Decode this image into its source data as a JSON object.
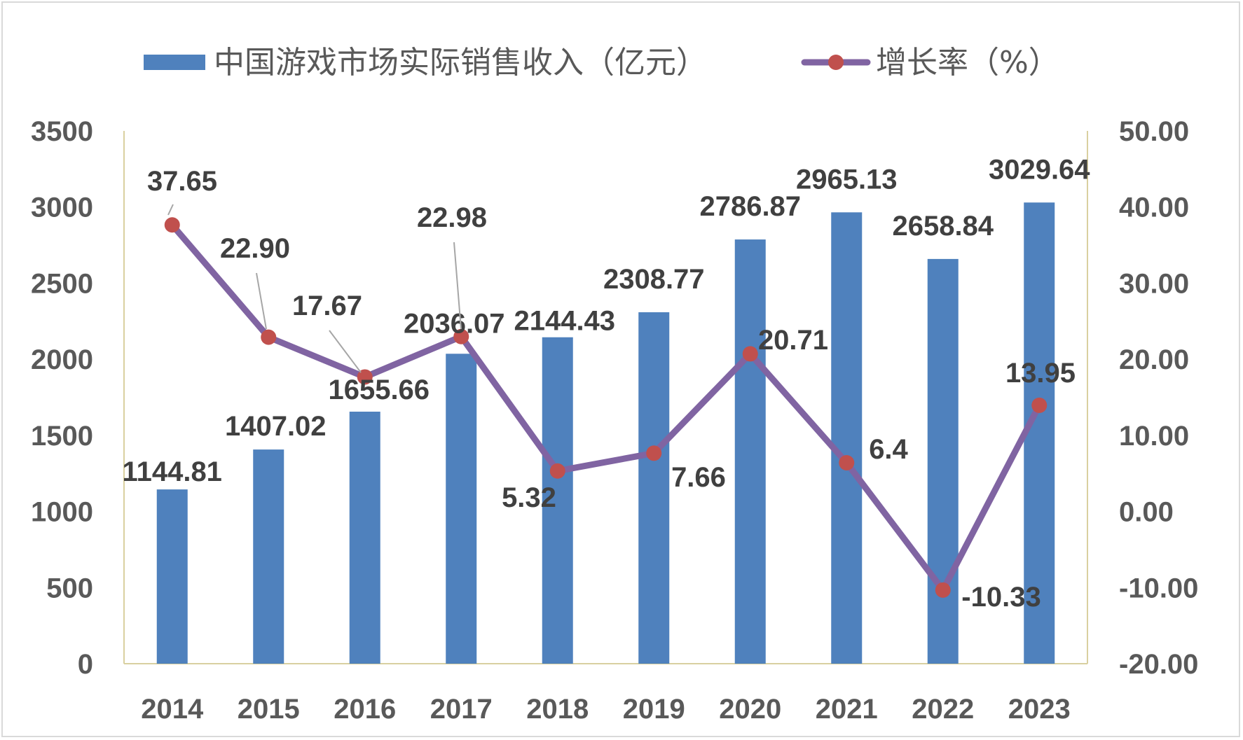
{
  "chart_data": {
    "type": "bar",
    "categories": [
      "2014",
      "2015",
      "2016",
      "2017",
      "2018",
      "2019",
      "2020",
      "2021",
      "2022",
      "2023"
    ],
    "series": [
      {
        "name": "中国游戏市场实际销售收入（亿元）",
        "type": "bar",
        "axis": "left",
        "color": "#4f81bd",
        "values": [
          1144.81,
          1407.02,
          1655.66,
          2036.07,
          2144.43,
          2308.77,
          2786.87,
          2965.13,
          2658.84,
          3029.64
        ],
        "labels": [
          "1144.81",
          "1407.02",
          "1655.66",
          "2036.07",
          "2144.43",
          "2308.77",
          "2786.87",
          "2965.13",
          "2658.84",
          "3029.64"
        ]
      },
      {
        "name": "增长率（%）",
        "type": "line",
        "axis": "right",
        "color": "#8064a2",
        "marker_color": "#c0504d",
        "values": [
          37.65,
          22.9,
          17.67,
          22.98,
          5.32,
          7.66,
          20.71,
          6.4,
          -10.33,
          13.95
        ],
        "labels": [
          "37.65",
          "22.90",
          "17.67",
          "22.98",
          "5.32",
          "7.66",
          "20.71",
          "6.4",
          "-10.33",
          "13.95"
        ]
      }
    ],
    "y_left": {
      "min": 0,
      "max": 3500,
      "ticks": [
        "0",
        "500",
        "1000",
        "1500",
        "2000",
        "2500",
        "3000",
        "3500"
      ]
    },
    "y_right": {
      "min": -20,
      "max": 50,
      "ticks": [
        "-20.00",
        "-10.00",
        "0.00",
        "10.00",
        "20.00",
        "30.00",
        "40.00",
        "50.00"
      ]
    },
    "legend_position": "top",
    "grid": false
  }
}
